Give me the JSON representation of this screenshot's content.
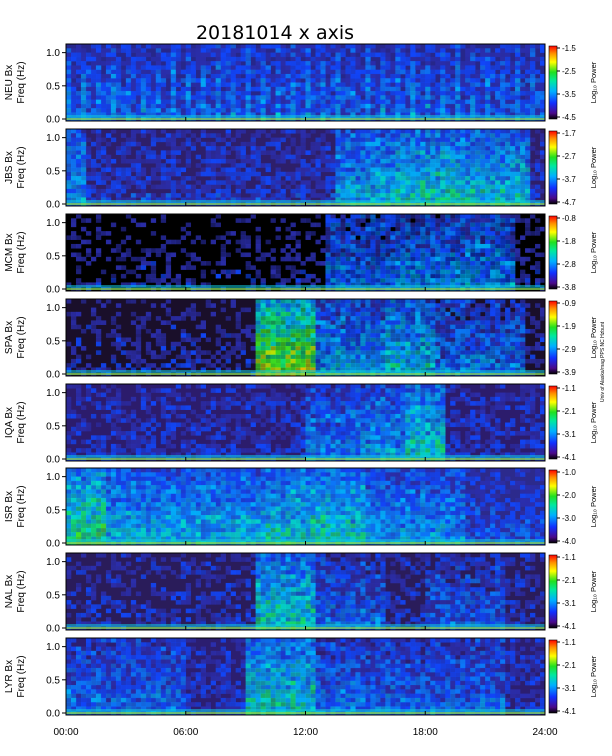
{
  "chart_data": {
    "type": "heatmap",
    "title": "20181014  x axis",
    "x_ticks": [
      "00:00",
      "06:00",
      "12:00",
      "18:00",
      "24:00"
    ],
    "x_range_hours": [
      0,
      24
    ],
    "y_ticks": [
      "0.0",
      "0.5",
      "1.0"
    ],
    "y_range_hz": [
      0,
      1.1
    ],
    "colorbar_label": "Log₁₀ Power",
    "side_note": "Univ of Alaska/mag PPS NC Hzbunt",
    "panels": [
      {
        "station": "NEU Bx",
        "ylabel": "Freq (Hz)",
        "ticks": [
          "-1.5",
          "-2.5",
          "-3.5",
          "-4.5"
        ],
        "range": [
          -4.5,
          -1.5
        ],
        "activity": [
          {
            "start": 0,
            "end": 24,
            "level": 0.28
          }
        ],
        "background": "#27278a",
        "stripes": true,
        "base": 0.15
      },
      {
        "station": "JBS Bx",
        "ylabel": "Freq (Hz)",
        "ticks": [
          "-1.7",
          "-2.7",
          "-3.7",
          "-4.7"
        ],
        "range": [
          -4.7,
          -1.7
        ],
        "activity": [
          {
            "start": 0,
            "end": 1.0,
            "level": 0.45
          },
          {
            "start": 13.5,
            "end": 16.5,
            "level": 0.5
          },
          {
            "start": 16.5,
            "end": 20.0,
            "level": 0.6
          },
          {
            "start": 20.0,
            "end": 23.2,
            "level": 0.55
          }
        ],
        "background": "#2e1f6a",
        "stripes": false,
        "base": 0.2
      },
      {
        "station": "MCM Bx",
        "ylabel": "Freq (Hz)",
        "ticks": [
          "-0.8",
          "-1.8",
          "-2.8",
          "-3.8"
        ],
        "range": [
          -3.8,
          -0.8
        ],
        "activity": [
          {
            "start": 13.0,
            "end": 16.5,
            "level": 0.35
          },
          {
            "start": 16.5,
            "end": 22.5,
            "level": 0.4
          }
        ],
        "background": "#000000",
        "stripes": false,
        "base": 0.1
      },
      {
        "station": "SPA Bx",
        "ylabel": "Freq (Hz)",
        "ticks": [
          "-0.9",
          "-1.9",
          "-2.9",
          "-3.9"
        ],
        "range": [
          -3.9,
          -0.9
        ],
        "activity": [
          {
            "start": 9.6,
            "end": 12.5,
            "level": 0.85
          },
          {
            "start": 12.5,
            "end": 16.0,
            "level": 0.45
          },
          {
            "start": 16.0,
            "end": 18.5,
            "level": 0.55
          },
          {
            "start": 18.5,
            "end": 23.0,
            "level": 0.35
          }
        ],
        "background": "#1a0f2a",
        "stripes": false,
        "base": 0.12
      },
      {
        "station": "IQA Bx",
        "ylabel": "Freq (Hz)",
        "ticks": [
          "-1.1",
          "-2.1",
          "-3.1",
          "-4.1"
        ],
        "range": [
          -4.1,
          -1.1
        ],
        "activity": [
          {
            "start": 12.0,
            "end": 15.0,
            "level": 0.4
          },
          {
            "start": 15.0,
            "end": 17.0,
            "level": 0.45
          },
          {
            "start": 17.0,
            "end": 19.0,
            "level": 0.6
          }
        ],
        "background": "#2c1c6c",
        "stripes": false,
        "base": 0.18
      },
      {
        "station": "ISR Bx",
        "ylabel": "Freq (Hz)",
        "ticks": [
          "-1.0",
          "-2.0",
          "-3.0",
          "-4.0"
        ],
        "range": [
          -4.0,
          -1.0
        ],
        "activity": [
          {
            "start": 0,
            "end": 2.0,
            "level": 0.7
          },
          {
            "start": 2.0,
            "end": 10.0,
            "level": 0.5
          },
          {
            "start": 10.0,
            "end": 15.0,
            "level": 0.6
          },
          {
            "start": 15.0,
            "end": 20.0,
            "level": 0.45
          }
        ],
        "background": "#2c2a8c",
        "stripes": false,
        "base": 0.25
      },
      {
        "station": "NAL Bx",
        "ylabel": "Freq (Hz)",
        "ticks": [
          "-1.1",
          "-2.1",
          "-3.1",
          "-4.1"
        ],
        "range": [
          -4.1,
          -1.1
        ],
        "activity": [
          {
            "start": 9.5,
            "end": 12.5,
            "level": 0.6
          },
          {
            "start": 12.5,
            "end": 16.0,
            "level": 0.35
          },
          {
            "start": 18.0,
            "end": 22.0,
            "level": 0.3
          }
        ],
        "background": "#2a1c5a",
        "stripes": false,
        "base": 0.15
      },
      {
        "station": "LYR Bx",
        "ylabel": "Freq (Hz)",
        "ticks": [
          "-1.1",
          "-2.1",
          "-3.1",
          "-4.1"
        ],
        "range": [
          -4.1,
          -1.1
        ],
        "activity": [
          {
            "start": 0,
            "end": 6.0,
            "level": 0.35
          },
          {
            "start": 9.0,
            "end": 12.5,
            "level": 0.6
          },
          {
            "start": 12.5,
            "end": 22.0,
            "level": 0.35
          }
        ],
        "background": "#2c1e70",
        "stripes": false,
        "base": 0.18
      }
    ]
  }
}
